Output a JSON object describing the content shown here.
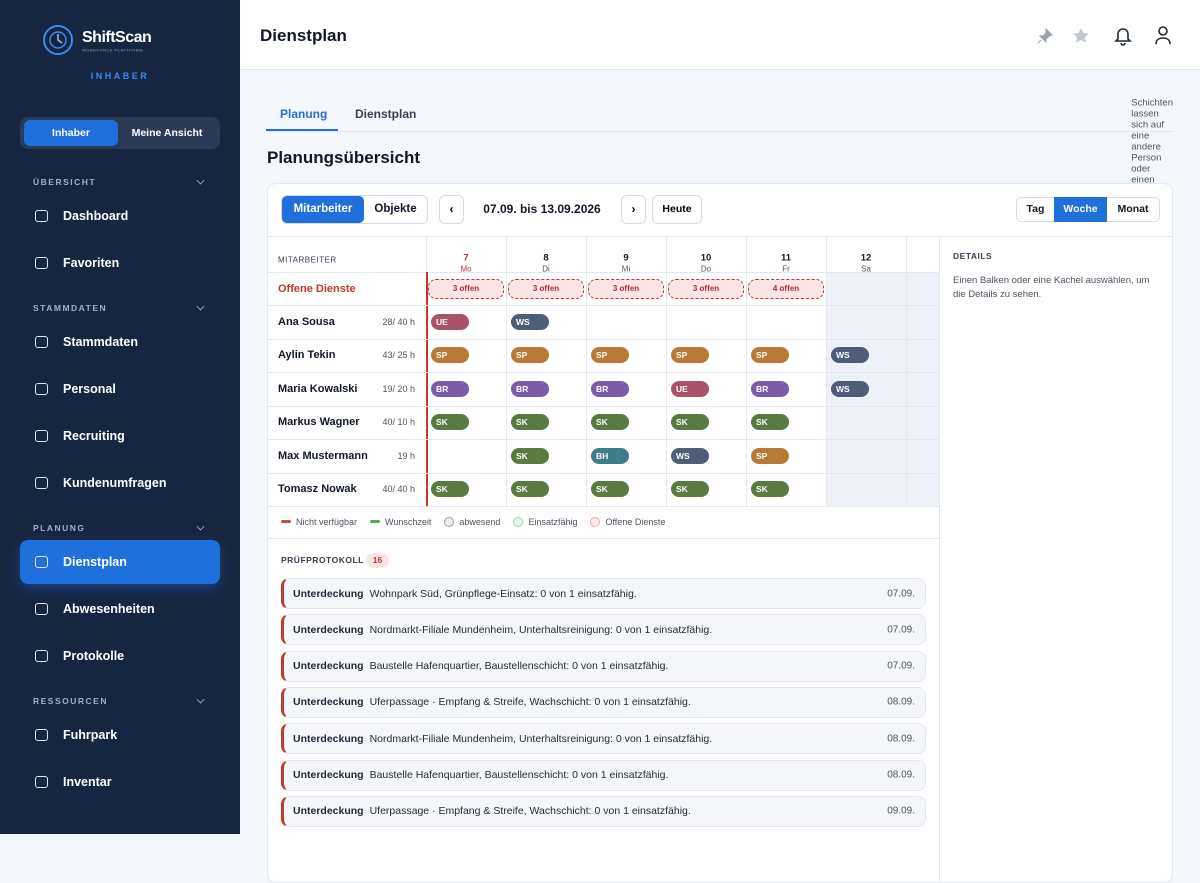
{
  "brand": {
    "name": "ShiftScan",
    "tagline": "WORKFORCE PLATTFORM",
    "role": "INHABER"
  },
  "role_toggle": {
    "options": [
      "Inhaber",
      "Meine Ansicht"
    ],
    "active": 0
  },
  "nav": {
    "active": [
      2,
      0
    ],
    "sections": [
      {
        "title": "ÜBERSICHT",
        "items": [
          "Dashboard",
          "Favoriten"
        ]
      },
      {
        "title": "STAMMDATEN",
        "items": [
          "Stammdaten",
          "Personal",
          "Recruiting",
          "Kundenumfragen"
        ]
      },
      {
        "title": "PLANUNG",
        "items": [
          "Dienstplan",
          "Abwesenheiten",
          "Protokolle"
        ]
      },
      {
        "title": "RESSOURCEN",
        "items": [
          "Fuhrpark",
          "Inventar"
        ]
      }
    ]
  },
  "header": {
    "title": "Dienstplan"
  },
  "tabs": {
    "items": [
      "Planung",
      "Dienstplan"
    ],
    "active": 0
  },
  "overview": {
    "title": "Planungsübersicht",
    "hint": "Schichten lassen sich auf eine andere Person oder einen anderen Tag ziehen"
  },
  "toolbar": {
    "view": {
      "options": [
        "Mitarbeiter",
        "Objekte"
      ],
      "active": 0
    },
    "prev": "‹",
    "range": "07.09. bis 13.09.2026",
    "next": "›",
    "today": "Heute",
    "zoom": {
      "options": [
        "Tag",
        "Woche",
        "Monat"
      ],
      "active": 1
    }
  },
  "grid": {
    "column_header": "MITARBEITER",
    "today_index": 0,
    "days": [
      {
        "num": "7",
        "name": "Mo"
      },
      {
        "num": "8",
        "name": "Di"
      },
      {
        "num": "9",
        "name": "Mi"
      },
      {
        "num": "10",
        "name": "Do"
      },
      {
        "num": "11",
        "name": "Fr"
      },
      {
        "num": "12",
        "name": "Sa"
      }
    ],
    "open": {
      "label": "Offene Dienste",
      "cells": [
        "3 offen",
        "3 offen",
        "3 offen",
        "3 offen",
        "4 offen",
        null
      ]
    },
    "shift_colors": {
      "UE": "#a9536b",
      "WS": "#4f5d78",
      "SP": "#b87a36",
      "BR": "#7a5ca8",
      "SK": "#587b3f",
      "BH": "#3e7b8b"
    },
    "employees": [
      {
        "name": "Ana Sousa",
        "hours": "28/ 40 h",
        "shifts": [
          "UE",
          "WS",
          null,
          null,
          null,
          null
        ]
      },
      {
        "name": "Aylin Tekin",
        "hours": "43/ 25 h",
        "shifts": [
          "SP",
          "SP",
          "SP",
          "SP",
          "SP",
          "WS"
        ]
      },
      {
        "name": "Maria Kowalski",
        "hours": "19/ 20 h",
        "shifts": [
          "BR",
          "BR",
          "BR",
          "UE",
          "BR",
          "WS"
        ]
      },
      {
        "name": "Markus Wagner",
        "hours": "40/ 10 h",
        "shifts": [
          "SK",
          "SK",
          "SK",
          "SK",
          "SK",
          null
        ]
      },
      {
        "name": "Max Mustermann",
        "hours": "19 h",
        "shifts": [
          null,
          "SK",
          "BH",
          "WS",
          "SP",
          null
        ]
      },
      {
        "name": "Tomasz Nowak",
        "hours": "40/ 40 h",
        "shifts": [
          "SK",
          "SK",
          "SK",
          "SK",
          "SK",
          null
        ]
      }
    ]
  },
  "legend": [
    {
      "label": "Nicht verfügbar",
      "color": "#c0504d",
      "shape": "line"
    },
    {
      "label": "Wunschzeit",
      "color": "#4caf50",
      "shape": "line"
    },
    {
      "label": "abwesend",
      "color": "#9aa3b0",
      "shape": "dot"
    },
    {
      "label": "Einsatzfähig",
      "color": "#9bd3a5",
      "shape": "dot"
    },
    {
      "label": "Offene Dienste",
      "color": "#f0a3a3",
      "shape": "dot"
    }
  ],
  "details": {
    "title": "DETAILS",
    "text": "Einen Balken oder eine Kachel auswählen, um die Details zu sehen."
  },
  "log": {
    "title": "PRÜFPROTOKOLL",
    "count": 16,
    "entries": [
      {
        "type": "Unterdeckung",
        "text": "Wohnpark Süd, Grünpflege-Einsatz: 0 von 1 einsatzfähig.",
        "date": "07.09."
      },
      {
        "type": "Unterdeckung",
        "text": "Nordmarkt-Filiale Mundenheim, Unterhaltsreinigung: 0 von 1 einsatzfähig.",
        "date": "07.09."
      },
      {
        "type": "Unterdeckung",
        "text": "Baustelle Hafenquartier, Baustellenschicht: 0 von 1 einsatzfähig.",
        "date": "07.09."
      },
      {
        "type": "Unterdeckung",
        "text": "Uferpassage · Empfang & Streife, Wachschicht: 0 von 1 einsatzfähig.",
        "date": "08.09."
      },
      {
        "type": "Unterdeckung",
        "text": "Nordmarkt-Filiale Mundenheim, Unterhaltsreinigung: 0 von 1 einsatzfähig.",
        "date": "08.09."
      },
      {
        "type": "Unterdeckung",
        "text": "Baustelle Hafenquartier, Baustellenschicht: 0 von 1 einsatzfähig.",
        "date": "08.09."
      },
      {
        "type": "Unterdeckung",
        "text": "Uferpassage · Empfang & Streife, Wachschicht: 0 von 1 einsatzfähig.",
        "date": "09.09."
      }
    ]
  }
}
